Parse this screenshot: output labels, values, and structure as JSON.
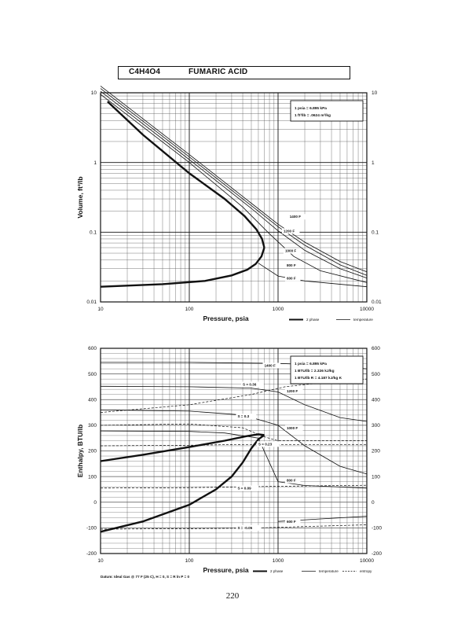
{
  "header": {
    "formula": "C4H4O4",
    "compound": "FUMARIC ACID"
  },
  "page_number": "220",
  "colors": {
    "ink": "#111111",
    "grid": "#555555",
    "paper": "#ffffff"
  },
  "chart_data": [
    {
      "type": "line",
      "title": "",
      "xlabel": "Pressure,  psia",
      "ylabel": "Volume, ft^3/lb",
      "x_scale": "log",
      "y_scale": "log",
      "xlim": [
        10,
        10000
      ],
      "ylim": [
        0.01,
        10
      ],
      "x_ticks": [
        {
          "v": 10,
          "t": "10"
        },
        {
          "v": 100,
          "t": "100"
        },
        {
          "v": 1000,
          "t": "1000"
        },
        {
          "v": 10000,
          "t": "10000"
        }
      ],
      "y_ticks": [
        {
          "v": 10,
          "t": "10"
        },
        {
          "v": 1,
          "t": "1"
        },
        {
          "v": 0.1,
          "t": "0.1"
        },
        {
          "v": 0.01,
          "t": "0.01"
        }
      ],
      "grid": true,
      "legend": "bottom-right",
      "legend_items": [
        {
          "label": "2 phase",
          "style": "thick"
        },
        {
          "label": "temperature",
          "style": "thin"
        }
      ],
      "info_box": [
        "1 psia  =  6.895 kPa",
        "1 ft^3/lb  =  .0624 m^3/kg"
      ],
      "series": [
        {
          "kind": "2 phase",
          "points": [
            [
              10,
              0.0165
            ],
            [
              50,
              0.018
            ],
            [
              150,
              0.02
            ],
            [
              300,
              0.024
            ],
            [
              450,
              0.029
            ],
            [
              560,
              0.035
            ],
            [
              650,
              0.045
            ],
            [
              700,
              0.06
            ]
          ]
        },
        {
          "kind": "2 phase",
          "points": [
            [
              700,
              0.06
            ],
            [
              660,
              0.08
            ],
            [
              570,
              0.11
            ],
            [
              420,
              0.17
            ],
            [
              250,
              0.3
            ],
            [
              100,
              0.7
            ],
            [
              30,
              2.5
            ],
            [
              12,
              7.5
            ]
          ]
        },
        {
          "kind": "temperature",
          "label": "600 F",
          "points": [
            [
              600,
              0.036
            ],
            [
              1000,
              0.0235
            ],
            [
              2000,
              0.02
            ],
            [
              10000,
              0.0165
            ]
          ]
        },
        {
          "kind": "temperature",
          "label": "800 F",
          "points": [
            [
              10,
              9.5
            ],
            [
              100,
              1.0
            ],
            [
              400,
              0.23
            ],
            [
              800,
              0.095
            ],
            [
              1500,
              0.045
            ],
            [
              3000,
              0.028
            ],
            [
              10000,
              0.019
            ]
          ]
        },
        {
          "kind": "temperature",
          "label": "1000 F",
          "points": [
            [
              10,
              10.5
            ],
            [
              100,
              1.1
            ],
            [
              500,
              0.22
            ],
            [
              1000,
              0.105
            ],
            [
              2000,
              0.055
            ],
            [
              5000,
              0.03
            ],
            [
              10000,
              0.022
            ]
          ]
        },
        {
          "kind": "temperature",
          "label": "1200 F",
          "points": [
            [
              10,
              11.5
            ],
            [
              100,
              1.2
            ],
            [
              500,
              0.24
            ],
            [
              1000,
              0.12
            ],
            [
              2000,
              0.065
            ],
            [
              5000,
              0.034
            ],
            [
              10000,
              0.024
            ]
          ]
        },
        {
          "kind": "temperature",
          "label": "1400 F",
          "points": [
            [
              10,
              12.5
            ],
            [
              100,
              1.3
            ],
            [
              500,
              0.26
            ],
            [
              1000,
              0.13
            ],
            [
              2000,
              0.072
            ],
            [
              5000,
              0.038
            ],
            [
              10000,
              0.027
            ]
          ]
        }
      ],
      "curve_labels": [
        {
          "text": "1400 F",
          "x": 1350,
          "y": 0.16
        },
        {
          "text": "1200 F",
          "x": 1150,
          "y": 0.1
        },
        {
          "text": "1000 F",
          "x": 1200,
          "y": 0.052
        },
        {
          "text": "800 F",
          "x": 1250,
          "y": 0.032
        },
        {
          "text": "600 F",
          "x": 1250,
          "y": 0.021
        }
      ],
      "annotations": []
    },
    {
      "type": "line",
      "title": "",
      "xlabel": "Pressure,  psia",
      "ylabel": "Enthalpy, BTU/lb",
      "x_scale": "log",
      "y_scale": "linear",
      "xlim": [
        10,
        10000
      ],
      "ylim": [
        -200,
        600
      ],
      "x_ticks": [
        {
          "v": 10,
          "t": "10"
        },
        {
          "v": 100,
          "t": "100"
        },
        {
          "v": 1000,
          "t": "1000"
        },
        {
          "v": 10000,
          "t": "10000"
        }
      ],
      "y_ticks": [
        {
          "v": 600,
          "t": "600"
        },
        {
          "v": 500,
          "t": "500"
        },
        {
          "v": 400,
          "t": "400"
        },
        {
          "v": 300,
          "t": "300"
        },
        {
          "v": 200,
          "t": "200"
        },
        {
          "v": 100,
          "t": "100"
        },
        {
          "v": 0,
          "t": "0"
        },
        {
          "v": -100,
          "t": "-100"
        },
        {
          "v": -200,
          "t": "-200"
        }
      ],
      "grid": true,
      "legend": "bottom-right",
      "legend_items": [
        {
          "label": "2 phase",
          "style": "thick"
        },
        {
          "label": "temperature",
          "style": "thin"
        },
        {
          "label": "entropy",
          "style": "dashed"
        }
      ],
      "info_box": [
        "1 psia  =  6.895 kPa",
        "1 BTU/lb  =  2.326 kJ/kg",
        "1 BTU/lb R  =  4.187 kJ/kg K"
      ],
      "series": [
        {
          "kind": "2 phase",
          "points": [
            [
              10,
              160
            ],
            [
              30,
              185
            ],
            [
              100,
              215
            ],
            [
              250,
              240
            ],
            [
              450,
              258
            ],
            [
              600,
              265
            ],
            [
              700,
              262
            ]
          ]
        },
        {
          "kind": "2 phase",
          "points": [
            [
              10,
              -115
            ],
            [
              30,
              -75
            ],
            [
              100,
              -10
            ],
            [
              200,
              50
            ],
            [
              300,
              100
            ],
            [
              400,
              155
            ],
            [
              500,
              210
            ],
            [
              600,
              245
            ],
            [
              700,
              262
            ]
          ]
        },
        {
          "kind": "temperature",
          "label": "1400 F",
          "points": [
            [
              10,
              545
            ],
            [
              100,
              545
            ],
            [
              1000,
              541
            ],
            [
              3000,
              535
            ],
            [
              10000,
              520
            ]
          ]
        },
        {
          "kind": "temperature",
          "label": "1200 F",
          "points": [
            [
              10,
              452
            ],
            [
              100,
              450
            ],
            [
              500,
              445
            ],
            [
              1000,
              430
            ],
            [
              2000,
              380
            ],
            [
              5000,
              330
            ],
            [
              10000,
              315
            ]
          ]
        },
        {
          "kind": "temperature",
          "label": "1000 F",
          "points": [
            [
              10,
              360
            ],
            [
              100,
              355
            ],
            [
              400,
              340
            ],
            [
              1000,
              300
            ],
            [
              2000,
              220
            ],
            [
              5000,
              140
            ],
            [
              10000,
              110
            ]
          ]
        },
        {
          "kind": "temperature",
          "label": "800 F",
          "points": [
            [
              10,
              278
            ],
            [
              100,
              276
            ],
            [
              250,
              270
            ],
            [
              600,
              250
            ],
            [
              1000,
              80
            ],
            [
              2000,
              65
            ],
            [
              10000,
              55
            ]
          ]
        },
        {
          "kind": "temperature",
          "label": "600 F",
          "points": [
            [
              1000,
              -75
            ],
            [
              3000,
              -65
            ],
            [
              10000,
              -55
            ]
          ]
        },
        {
          "kind": "entropy",
          "label": "S = 0.36",
          "points": [
            [
              10,
              350
            ],
            [
              100,
              380
            ],
            [
              500,
              420
            ],
            [
              1200,
              450
            ],
            [
              3000,
              465
            ],
            [
              10000,
              480
            ]
          ]
        },
        {
          "kind": "entropy",
          "label": "S = 0.3",
          "points": [
            [
              10,
              300
            ],
            [
              100,
              305
            ],
            [
              400,
              290
            ],
            [
              700,
              255
            ],
            [
              1000,
              240
            ],
            [
              10000,
              240
            ]
          ]
        },
        {
          "kind": "entropy",
          "label": "S = 0.23",
          "points": [
            [
              10,
              220
            ],
            [
              100,
              222
            ],
            [
              400,
              225
            ],
            [
              1000,
              225
            ],
            [
              10000,
              225
            ]
          ]
        },
        {
          "kind": "entropy",
          "label": "S = 0.09",
          "points": [
            [
              10,
              55
            ],
            [
              100,
              57
            ],
            [
              300,
              59
            ],
            [
              1000,
              62
            ],
            [
              10000,
              66
            ]
          ]
        },
        {
          "kind": "entropy",
          "label": "S = -0.05",
          "points": [
            [
              10,
              -105
            ],
            [
              100,
              -103
            ],
            [
              500,
              -101
            ],
            [
              2000,
              -95
            ],
            [
              10000,
              -88
            ]
          ]
        }
      ],
      "curve_labels": [
        {
          "text": "1400 F",
          "x": 700,
          "y": 528
        },
        {
          "text": "1200 F",
          "x": 1250,
          "y": 428
        },
        {
          "text": "1000 F",
          "x": 1250,
          "y": 285
        },
        {
          "text": "800 F",
          "x": 1250,
          "y": 80
        },
        {
          "text": "600 F",
          "x": 1250,
          "y": -80
        },
        {
          "text": "S = 0.36",
          "x": 400,
          "y": 455
        },
        {
          "text": "S = 0.3",
          "x": 350,
          "y": 330
        },
        {
          "text": "S = 0.23",
          "x": 600,
          "y": 222
        },
        {
          "text": "S = 0.09",
          "x": 350,
          "y": 50
        },
        {
          "text": "S = -0.05",
          "x": 350,
          "y": -105
        }
      ],
      "annotations": [
        "Datum: Ideal Gas @ 77 F (25 C), H = 0, S = R ln P = 0"
      ]
    }
  ]
}
